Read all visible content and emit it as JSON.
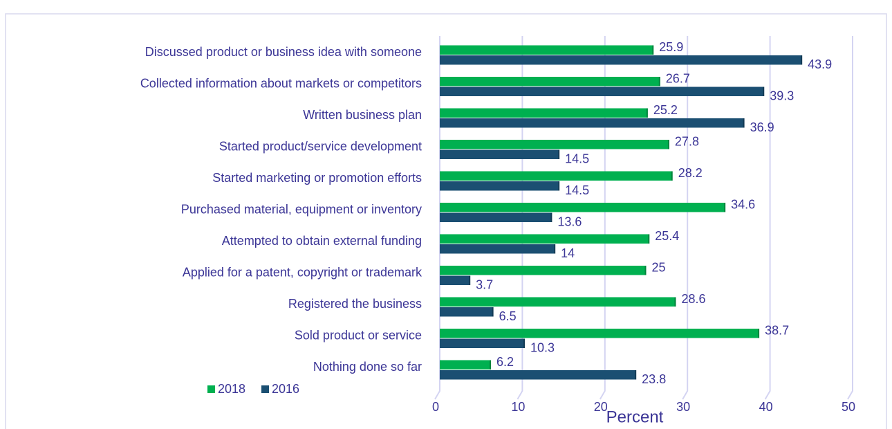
{
  "chart_data": {
    "type": "bar",
    "orientation": "horizontal",
    "categories": [
      "Discussed product or business idea with someone",
      "Collected information about markets or competitors",
      "Written business plan",
      "Started product/service development",
      "Started marketing or promotion efforts",
      "Purchased material, equipment or inventory",
      "Attempted to obtain external funding",
      "Applied for a patent, copyright or trademark",
      "Registered the business",
      "Sold product or service",
      "Nothing done so far"
    ],
    "series": [
      {
        "name": "2018",
        "color": "#00b050",
        "values": [
          25.9,
          26.7,
          25.2,
          27.8,
          28.2,
          34.6,
          25.4,
          25,
          28.6,
          38.7,
          6.2
        ]
      },
      {
        "name": "2016",
        "color": "#1b4f72",
        "values": [
          43.9,
          39.3,
          36.9,
          14.5,
          14.5,
          13.6,
          14,
          3.7,
          6.5,
          10.3,
          23.8
        ]
      }
    ],
    "x_label": "Percent",
    "xlim": [
      0,
      50
    ],
    "xticks": [
      0,
      10,
      20,
      30,
      40,
      50
    ],
    "grid": true,
    "legend": "bottom-left"
  }
}
